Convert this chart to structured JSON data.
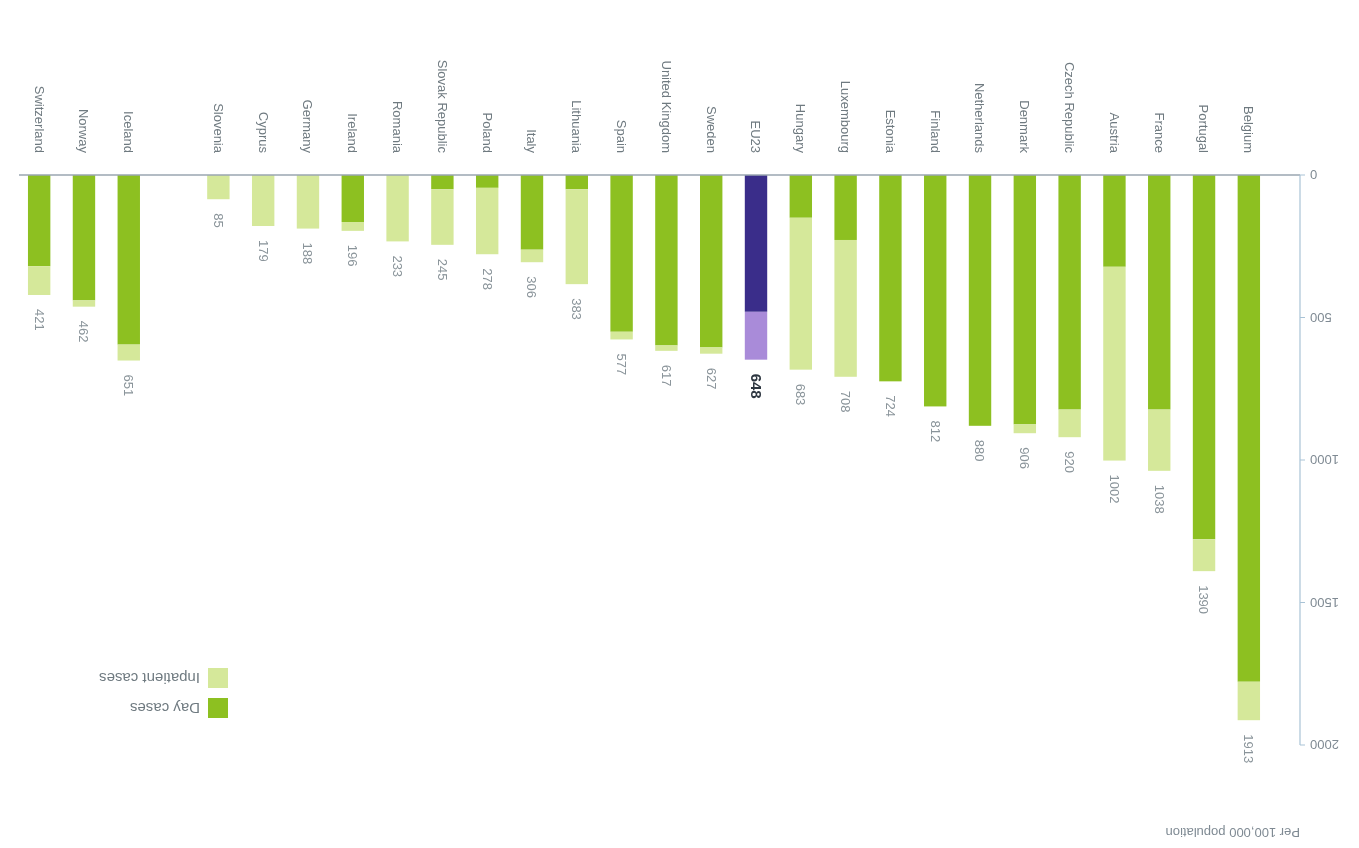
{
  "chart_data": {
    "type": "bar",
    "stacked": true,
    "annotations": [
      "Per 100,000 population"
    ],
    "categories": [
      "Switzerland",
      "Norway",
      "Iceland",
      null,
      "Slovenia",
      "Cyprus",
      "Germany",
      "Ireland",
      "Romania",
      "Slovak Republic",
      "Poland",
      "Italy",
      "Lithuania",
      "Spain",
      "United Kingdom",
      "Sweden",
      "EU23",
      "Hungary",
      "Luxembourg",
      "Estonia",
      "Finland",
      "Netherlands",
      "Denmark",
      "Czech Republic",
      "Austria",
      "France",
      "Portugal",
      "Belgium"
    ],
    "series": [
      {
        "name": "Day cases",
        "color": "#8dc021",
        "colors": [
          "#8dc021",
          "#8dc021",
          "#8dc021",
          null,
          "#8dc021",
          "#8dc021",
          "#8dc021",
          "#8dc021",
          "#8dc021",
          "#8dc021",
          "#8dc021",
          "#8dc021",
          "#8dc021",
          "#8dc021",
          "#8dc021",
          "#8dc021",
          "#3a2d8a",
          "#8dc021",
          "#8dc021",
          "#8dc021",
          "#8dc021",
          "#8dc021",
          "#8dc021",
          "#8dc021",
          "#8dc021",
          "#8dc021",
          "#8dc021",
          "#8dc021"
        ],
        "values": [
          320,
          440,
          595,
          null,
          0,
          0,
          0,
          165,
          0,
          50,
          45,
          262,
          50,
          550,
          598,
          605,
          480,
          150,
          228,
          724,
          812,
          880,
          875,
          823,
          322,
          823,
          1278,
          1778
        ]
      },
      {
        "name": "Inpatient cases",
        "color": "#d5e89a",
        "colors": [
          "#d5e89a",
          "#d5e89a",
          "#d5e89a",
          null,
          "#d5e89a",
          "#d5e89a",
          "#d5e89a",
          "#d5e89a",
          "#d5e89a",
          "#d5e89a",
          "#d5e89a",
          "#d5e89a",
          "#d5e89a",
          "#d5e89a",
          "#d5e89a",
          "#d5e89a",
          "#a98bd9",
          "#d5e89a",
          "#d5e89a",
          "#d5e89a",
          "#d5e89a",
          "#d5e89a",
          "#d5e89a",
          "#d5e89a",
          "#d5e89a",
          "#d5e89a",
          "#d5e89a",
          "#d5e89a"
        ],
        "values": [
          101,
          22,
          56,
          null,
          85,
          179,
          188,
          31,
          233,
          195,
          233,
          44,
          333,
          27,
          19,
          22,
          168,
          533,
          480,
          0,
          0,
          0,
          31,
          97,
          680,
          215,
          112,
          135
        ]
      }
    ],
    "totals": [
      "421",
      "462",
      "651",
      null,
      "85",
      "179",
      "188",
      "196",
      "233",
      "245",
      "278",
      "306",
      "383",
      "577",
      "617",
      "627",
      "648",
      "683",
      "708",
      "724",
      "812",
      "880",
      "906",
      "920",
      "1002",
      "1038",
      "1390",
      "1913"
    ],
    "ylim": [
      2000,
      0
    ],
    "yticks": [
      0,
      500,
      1000,
      1500,
      2000
    ],
    "legend": "bottom left"
  }
}
